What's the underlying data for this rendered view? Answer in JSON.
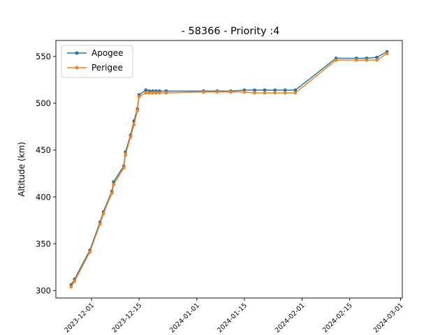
{
  "chart_data": {
    "type": "line",
    "title": "- 58366 - Priority :4",
    "xlabel": "",
    "ylabel": "Altitude (km)",
    "xlim": [
      "2023-11-20T12:00",
      "2024-03-01T12:00"
    ],
    "ylim": [
      292,
      567
    ],
    "grid": false,
    "legend_position": "top-left",
    "x_ticks": [
      "2023-12-01",
      "2023-12-15",
      "2024-01-01",
      "2024-01-15",
      "2024-02-01",
      "2024-02-15",
      "2024-03-01"
    ],
    "y_ticks": [
      300,
      350,
      400,
      450,
      500,
      550
    ],
    "x": [
      "2023-11-25T00:00",
      "2023-11-26T00:00",
      "2023-11-30T12:00",
      "2023-12-03T12:00",
      "2023-12-04T12:00",
      "2023-12-07T00:00",
      "2023-12-07T12:00",
      "2023-12-10T12:00",
      "2023-12-11T00:00",
      "2023-12-12T12:00",
      "2023-12-13T12:00",
      "2023-12-14T12:00",
      "2023-12-15T00:00",
      "2023-12-17T00:00",
      "2023-12-18T00:00",
      "2023-12-19T00:00",
      "2023-12-20T00:00",
      "2023-12-21T00:00",
      "2023-12-23T00:00",
      "2024-01-03T00:00",
      "2024-01-07T00:00",
      "2024-01-11T00:00",
      "2024-01-15T00:00",
      "2024-01-18T00:00",
      "2024-01-21T00:00",
      "2024-01-24T00:00",
      "2024-01-27T00:00",
      "2024-01-30T00:00",
      "2024-02-11T00:00",
      "2024-02-17T00:00",
      "2024-02-20T00:00",
      "2024-02-23T00:00",
      "2024-02-26T00:00"
    ],
    "series": [
      {
        "name": "Apogee",
        "color": "#1f77b4",
        "values": [
          306,
          312,
          343,
          373,
          384,
          406,
          416,
          433,
          448,
          466,
          481,
          494,
          509,
          514,
          513,
          513,
          513,
          513,
          513,
          513,
          513,
          513,
          514,
          514,
          514,
          514,
          514,
          514,
          548,
          548,
          548,
          549,
          555
        ]
      },
      {
        "name": "Perigee",
        "color": "#ff7f0e",
        "values": [
          304,
          310,
          341,
          371,
          382,
          404,
          413,
          431,
          445,
          464,
          477,
          492,
          507,
          511,
          511,
          511,
          511,
          511,
          511,
          512,
          512,
          512,
          512,
          511,
          511,
          511,
          511,
          511,
          546,
          546,
          546,
          546,
          553
        ]
      }
    ]
  }
}
